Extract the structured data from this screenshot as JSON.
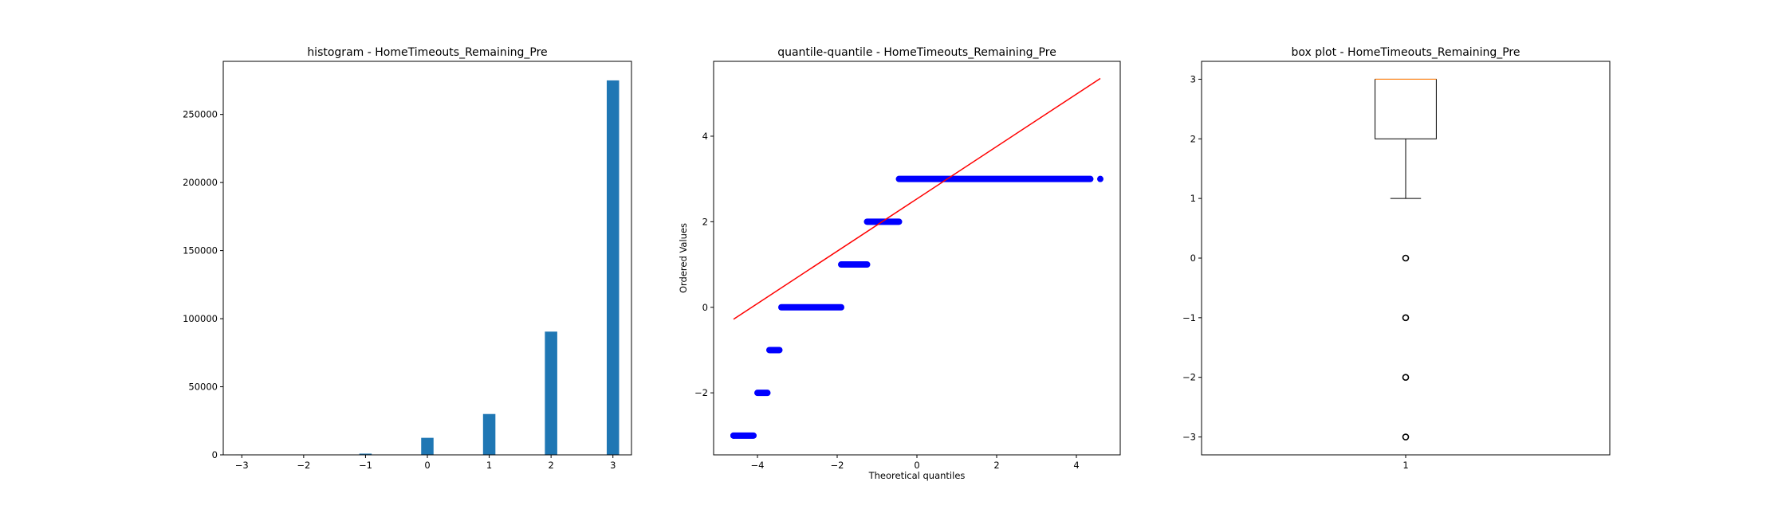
{
  "figure": {
    "background": "#ffffff",
    "axes_color": "#000000"
  },
  "chart_data": [
    {
      "type": "bar",
      "title": "histogram - HomeTimeouts_Remaining_Pre",
      "xlabel": "",
      "ylabel": "",
      "color": "#1f77b4",
      "xlim": [
        -3.3,
        3.3
      ],
      "ylim": [
        0,
        289000
      ],
      "bar_width": 0.2,
      "x": [
        -3,
        -1,
        0,
        1,
        2,
        3
      ],
      "values": [
        300,
        900,
        12500,
        30000,
        90500,
        275000
      ],
      "x_ticks": [
        -3,
        -2,
        -1,
        0,
        1,
        2,
        3
      ],
      "x_tick_labels": [
        "−3",
        "−2",
        "−1",
        "0",
        "1",
        "2",
        "3"
      ],
      "y_ticks": [
        0,
        50000,
        100000,
        150000,
        200000,
        250000
      ],
      "y_tick_labels": [
        "0",
        "50000",
        "100000",
        "150000",
        "200000",
        "250000"
      ],
      "grid": false
    },
    {
      "type": "scatter",
      "title": "quantile-quantile - HomeTimeouts_Remaining_Pre",
      "xlabel": "Theoretical quantiles",
      "ylabel": "Ordered Values",
      "point_color": "#0000ff",
      "line_color": "#ff0000",
      "xlim": [
        -5.1,
        5.1
      ],
      "ylim": [
        -3.45,
        5.75
      ],
      "segments": [
        {
          "y": -3,
          "x_start": -4.6,
          "x_end": -4.1
        },
        {
          "y": -2,
          "x_start": -4.0,
          "x_end": -3.75
        },
        {
          "y": -1,
          "x_start": -3.7,
          "x_end": -3.45
        },
        {
          "y": 0,
          "x_start": -3.4,
          "x_end": -1.9
        },
        {
          "y": 1,
          "x_start": -1.9,
          "x_end": -1.25
        },
        {
          "y": 2,
          "x_start": -1.25,
          "x_end": -0.45
        },
        {
          "y": 3,
          "x_start": -0.45,
          "x_end": 4.35
        }
      ],
      "outlier_points": [
        {
          "x": -4.6,
          "y": -3
        },
        {
          "x": 4.6,
          "y": 3
        }
      ],
      "fit_line": {
        "x": [
          -4.6,
          4.6
        ],
        "y": [
          -0.28,
          5.35
        ]
      },
      "x_ticks": [
        -4,
        -2,
        0,
        2,
        4
      ],
      "x_tick_labels": [
        "−4",
        "−2",
        "0",
        "2",
        "4"
      ],
      "y_ticks": [
        -2,
        0,
        2,
        4
      ],
      "y_tick_labels": [
        "−2",
        "0",
        "2",
        "4"
      ],
      "grid": false
    },
    {
      "type": "box",
      "title": "box plot - HomeTimeouts_Remaining_Pre",
      "xlabel": "",
      "ylabel": "",
      "box_color": "#000000",
      "median_color": "#ff7f0e",
      "xlim": [
        0.5,
        1.5
      ],
      "ylim": [
        -3.3,
        3.3
      ],
      "position": 1,
      "q1": 2,
      "median": 3,
      "q3": 3,
      "whisker_low": 1,
      "whisker_high": 3,
      "outliers": [
        0,
        -1,
        -2,
        -3
      ],
      "x_ticks": [
        1
      ],
      "x_tick_labels": [
        "1"
      ],
      "y_ticks": [
        -3,
        -2,
        -1,
        0,
        1,
        2,
        3
      ],
      "y_tick_labels": [
        "−3",
        "−2",
        "−1",
        "0",
        "1",
        "2",
        "3"
      ],
      "grid": false
    }
  ]
}
